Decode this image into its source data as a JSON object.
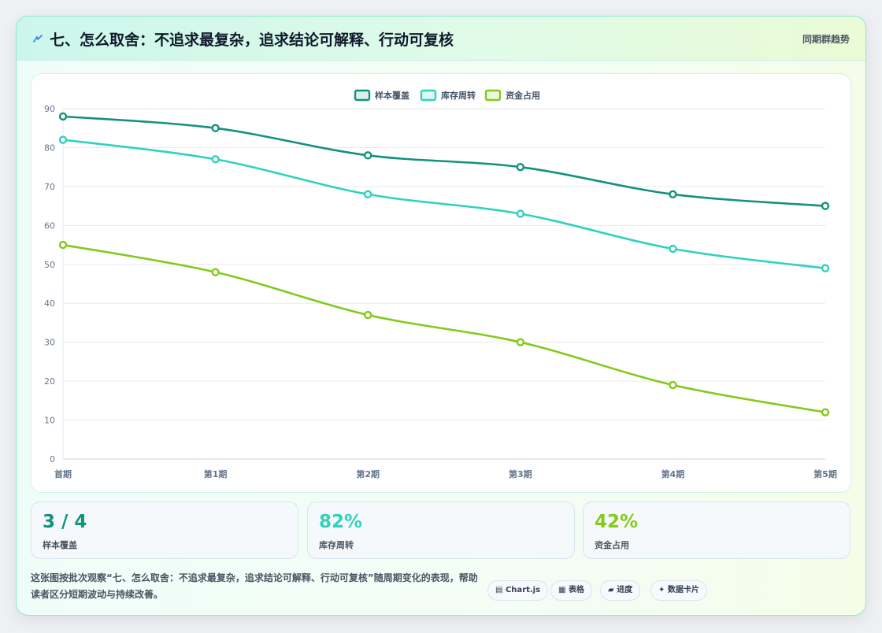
{
  "header": {
    "title": "七、怎么取舍：不追求最复杂，追求结论可解释、行动可复核",
    "right_label": "同期群趋势",
    "title_icon": "lightning-icon",
    "title_icon_color": "#3b82f6"
  },
  "chart_data": {
    "type": "line",
    "categories": [
      "首期",
      "第1期",
      "第2期",
      "第3期",
      "第4期",
      "第5期"
    ],
    "series": [
      {
        "name": "样本覆盖",
        "color": "#14917e",
        "values": [
          88,
          85,
          78,
          75,
          68,
          65
        ]
      },
      {
        "name": "库存周转",
        "color": "#2fd2bd",
        "values": [
          82,
          77,
          68,
          63,
          54,
          49
        ]
      },
      {
        "name": "资金占用",
        "color": "#84c91c",
        "values": [
          55,
          48,
          37,
          30,
          19,
          12
        ]
      }
    ],
    "ylim": [
      0,
      90
    ],
    "yticks": [
      0,
      10,
      20,
      30,
      40,
      50,
      60,
      70,
      80,
      90
    ],
    "grid": true,
    "legend": "top-center",
    "xlabel": "",
    "ylabel": ""
  },
  "stats": [
    {
      "value": "3 / 4",
      "label": "样本覆盖",
      "color": "#14917e"
    },
    {
      "value": "82%",
      "label": "库存周转",
      "color": "#2fd2bd"
    },
    {
      "value": "42%",
      "label": "资金占用",
      "color": "#84c91c"
    }
  ],
  "footer": {
    "text": "这张图按批次观察“七、怎么取舍：不追求最复杂，追求结论可解释、行动可复核”随周期变化的表现，帮助读者区分短期波动与持续改善。",
    "pills": [
      {
        "icon": "window-icon",
        "glyph": "▤",
        "label": "Chart.js"
      },
      {
        "icon": "table-icon",
        "glyph": "▦",
        "label": "表格"
      },
      {
        "icon": "progress-icon",
        "glyph": "▰",
        "label": "进度"
      },
      {
        "icon": "sparkle-icon",
        "glyph": "✦",
        "label": "数据卡片"
      }
    ]
  }
}
